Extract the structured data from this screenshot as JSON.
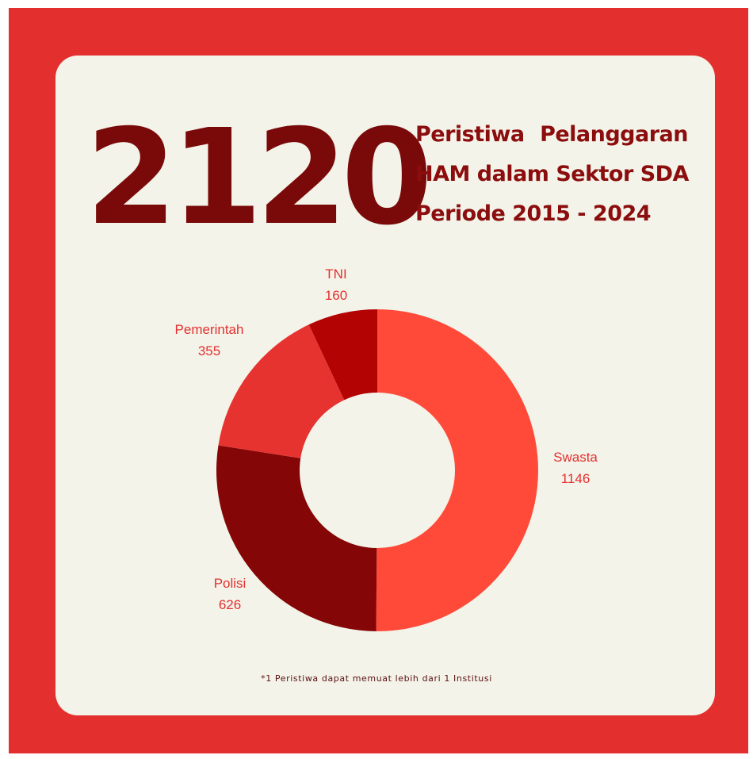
{
  "total": "2120",
  "headline": {
    "line1_a": "Peristiwa",
    "line1_b": "Pelanggaran",
    "line2": "HAM dalam Sektor SDA",
    "line3": "Periode 2015 - 2024"
  },
  "footnote": "*1 Peristiwa dapat memuat lebih dari 1 Institusi",
  "colors": {
    "frame": "#e3302f",
    "card": "#f3f3e9",
    "title": "#7a0a0a",
    "label": "#e3302f"
  },
  "chart_data": {
    "type": "donut",
    "slices": [
      {
        "name": "Swasta",
        "value": 1146,
        "color": "#ff4a3a"
      },
      {
        "name": "Polisi",
        "value": 626,
        "color": "#850606"
      },
      {
        "name": "Pemerintah",
        "value": 355,
        "color": "#e63330"
      },
      {
        "name": "TNI",
        "value": 160,
        "color": "#b30303"
      }
    ],
    "start": "top",
    "direction": "clockwise"
  }
}
